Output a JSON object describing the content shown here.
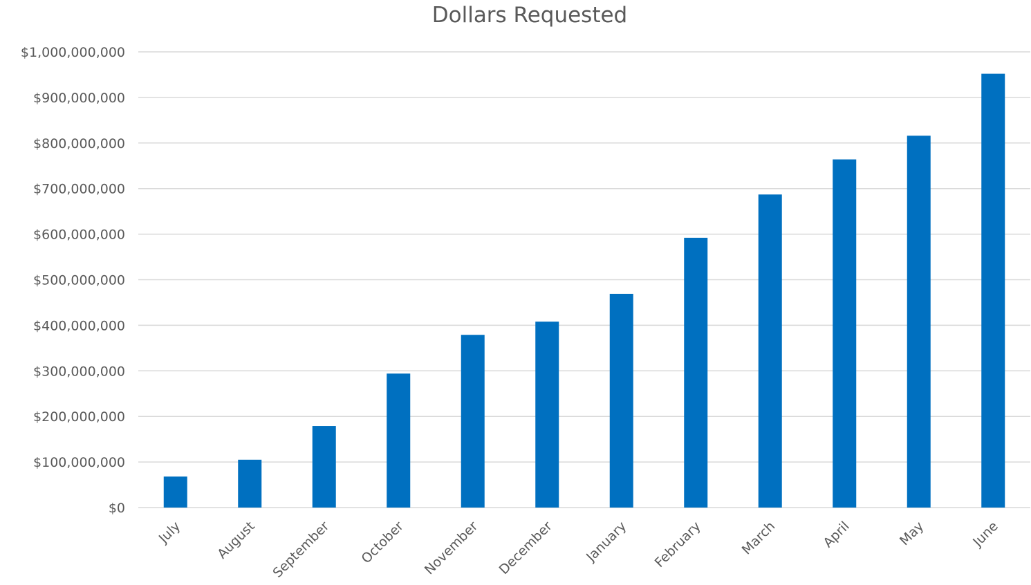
{
  "chart_data": {
    "type": "bar",
    "title": "Dollars Requested",
    "xlabel": "",
    "ylabel": "",
    "categories": [
      "July",
      "August",
      "September",
      "October",
      "November",
      "December",
      "January",
      "February",
      "March",
      "April",
      "May",
      "June"
    ],
    "values": [
      68000000,
      105000000,
      179000000,
      294000000,
      379000000,
      408000000,
      469000000,
      592000000,
      687000000,
      764000000,
      816000000,
      952000000
    ],
    "ylim": [
      0,
      1000000000
    ],
    "yticks": [
      0,
      100000000,
      200000000,
      300000000,
      400000000,
      500000000,
      600000000,
      700000000,
      800000000,
      900000000,
      1000000000
    ],
    "ytick_labels": [
      "$0",
      "$100,000,000",
      "$200,000,000",
      "$300,000,000",
      "$400,000,000",
      "$500,000,000",
      "$600,000,000",
      "$700,000,000",
      "$800,000,000",
      "$900,000,000",
      "$1,000,000,000"
    ],
    "grid": true,
    "legend": "none",
    "colors": {
      "bar": "#0070C0",
      "grid": "#D9D9D9",
      "text": "#595959"
    }
  }
}
